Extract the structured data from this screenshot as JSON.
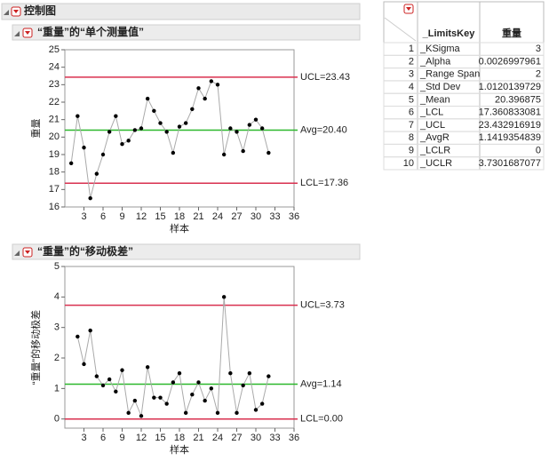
{
  "header": {
    "title": "控制图"
  },
  "chart_data": [
    {
      "type": "control",
      "title": "“重量”的“单个测量值”",
      "x_label": "样本",
      "y_label": "重量",
      "x": [
        1,
        2,
        3,
        4,
        5,
        6,
        7,
        8,
        9,
        10,
        11,
        12,
        13,
        14,
        15,
        16,
        17,
        18,
        19,
        20,
        21,
        22,
        23,
        24,
        25,
        26,
        27,
        28,
        29,
        30,
        31,
        32
      ],
      "series": [
        {
          "color": "#000000",
          "values": [
            18.5,
            21.2,
            19.4,
            16.5,
            17.9,
            19.0,
            20.3,
            21.2,
            19.6,
            19.8,
            20.4,
            20.5,
            22.2,
            21.5,
            20.8,
            20.3,
            19.1,
            20.6,
            20.8,
            21.6,
            22.8,
            22.2,
            23.2,
            23.0,
            19.0,
            20.5,
            20.3,
            19.2,
            20.7,
            21.0,
            20.5,
            19.1
          ]
        }
      ],
      "limits": [
        {
          "value": 23.43,
          "label": "UCL=23.43",
          "color": "#d9304f"
        },
        {
          "value": 20.4,
          "label": "Avg=20.40",
          "color": "#2cb82c"
        },
        {
          "value": 17.36,
          "label": "LCL=17.36",
          "color": "#d9304f"
        }
      ],
      "xlim": [
        0,
        36
      ],
      "xticks": [
        3,
        6,
        9,
        12,
        15,
        18,
        21,
        24,
        27,
        30,
        33,
        36
      ],
      "ylim": [
        16,
        25
      ],
      "yticks": [
        16,
        17,
        18,
        19,
        20,
        21,
        22,
        23,
        24,
        25
      ]
    },
    {
      "type": "control",
      "title": "“重量”的“移动极差”",
      "x_label": "样本",
      "y_label": "“重量”的移动极差",
      "x": [
        2,
        3,
        4,
        5,
        6,
        7,
        8,
        9,
        10,
        11,
        12,
        13,
        14,
        15,
        16,
        17,
        18,
        19,
        20,
        21,
        22,
        23,
        24,
        25,
        26,
        27,
        28,
        29,
        30,
        31,
        32
      ],
      "series": [
        {
          "color": "#000000",
          "values": [
            2.7,
            1.8,
            2.9,
            1.4,
            1.1,
            1.3,
            0.9,
            1.6,
            0.2,
            0.6,
            0.1,
            1.7,
            0.7,
            0.7,
            0.5,
            1.2,
            1.5,
            0.2,
            0.8,
            1.2,
            0.6,
            1.0,
            0.2,
            4.0,
            1.5,
            0.2,
            1.1,
            1.5,
            0.3,
            0.5,
            1.4
          ]
        }
      ],
      "limits": [
        {
          "value": 3.73,
          "label": "UCL=3.73",
          "color": "#d9304f"
        },
        {
          "value": 1.14,
          "label": "Avg=1.14",
          "color": "#2cb82c"
        },
        {
          "value": 0.0,
          "label": "LCL=0.00",
          "color": "#d9304f"
        }
      ],
      "xlim": [
        0,
        36
      ],
      "xticks": [
        3,
        6,
        9,
        12,
        15,
        18,
        21,
        24,
        27,
        30,
        33,
        36
      ],
      "ylim": [
        -0.3,
        5
      ],
      "yticks": [
        0,
        1,
        2,
        3,
        4,
        5
      ]
    }
  ],
  "table": {
    "columns": [
      "_LimitsKey",
      "重量"
    ],
    "rows": [
      [
        "1",
        "_KSigma",
        "3"
      ],
      [
        "2",
        "_Alpha",
        "0.0026997961"
      ],
      [
        "3",
        "_Range Span",
        "2"
      ],
      [
        "4",
        "_Std Dev",
        "1.0120139729"
      ],
      [
        "5",
        "_Mean",
        "20.396875"
      ],
      [
        "6",
        "_LCL",
        "17.360833081"
      ],
      [
        "7",
        "_UCL",
        "23.432916919"
      ],
      [
        "8",
        "_AvgR",
        "1.1419354839"
      ],
      [
        "9",
        "_LCLR",
        "0"
      ],
      [
        "10",
        "_UCLR",
        "3.7301687077"
      ]
    ]
  }
}
